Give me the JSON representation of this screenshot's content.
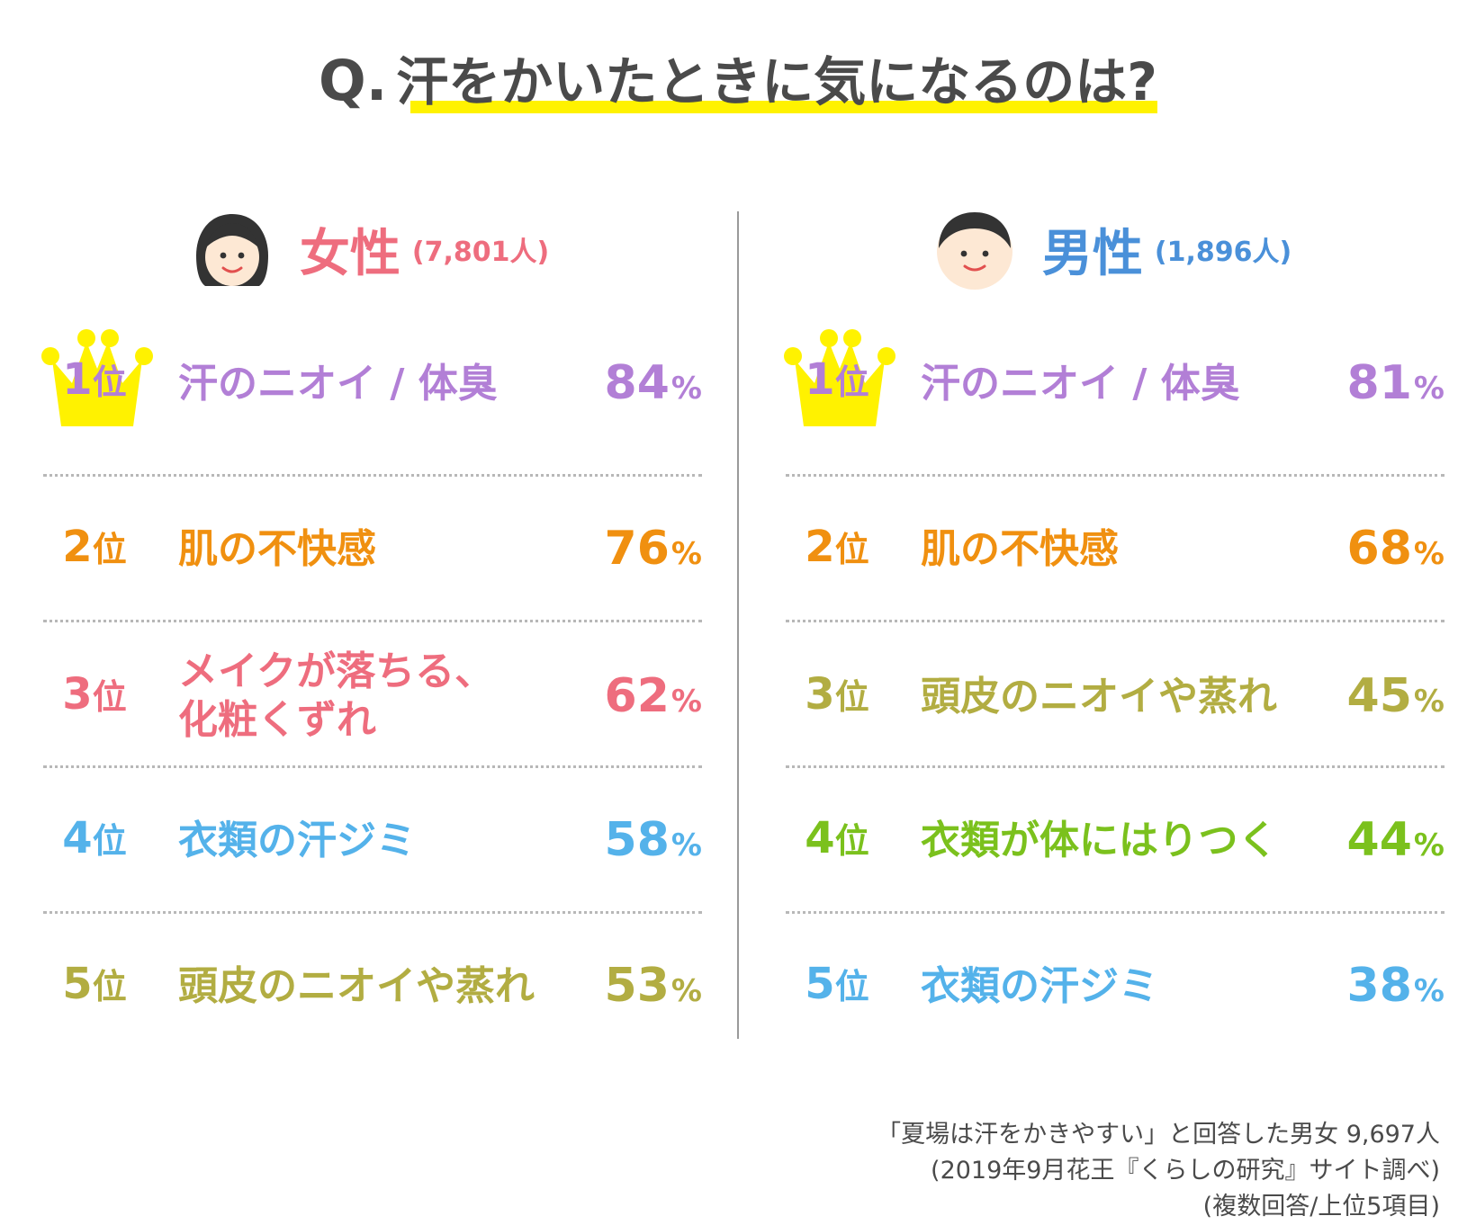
{
  "title": {
    "q": "Q.",
    "text": "汗をかいたときに気になるのは?"
  },
  "colors": {
    "female_header": "#ee6d7e",
    "male_header": "#4a90d9",
    "rank1": "#b27fd6",
    "rank2": "#f09010",
    "female_rank3": "#ee6d7e",
    "male_rank3": "#b2ad42",
    "female_rank4": "#54b2ea",
    "male_rank4": "#7bc11d",
    "female_rank5": "#b2ad42",
    "male_rank5": "#54b2ea",
    "crown": "#fff200",
    "title_underline": "#fff200"
  },
  "chart_data": [
    {
      "type": "table",
      "group": "女性",
      "count_label": "(7,801人)",
      "rank_unit": "位",
      "pct_unit": "%",
      "rows": [
        {
          "rank": "1",
          "item": "汗のニオイ / 体臭",
          "value": 84
        },
        {
          "rank": "2",
          "item": "肌の不快感",
          "value": 76
        },
        {
          "rank": "3",
          "item_line1": "メイクが落ちる、",
          "item_line2": "化粧くずれ",
          "value": 62
        },
        {
          "rank": "4",
          "item": "衣類の汗ジミ",
          "value": 58
        },
        {
          "rank": "5",
          "item": "頭皮のニオイや蒸れ",
          "value": 53
        }
      ]
    },
    {
      "type": "table",
      "group": "男性",
      "count_label": "(1,896人)",
      "rank_unit": "位",
      "pct_unit": "%",
      "rows": [
        {
          "rank": "1",
          "item": "汗のニオイ / 体臭",
          "value": 81
        },
        {
          "rank": "2",
          "item": "肌の不快感",
          "value": 68
        },
        {
          "rank": "3",
          "item": "頭皮のニオイや蒸れ",
          "value": 45
        },
        {
          "rank": "4",
          "item": "衣類が体にはりつく",
          "value": 44
        },
        {
          "rank": "5",
          "item": "衣類の汗ジミ",
          "value": 38
        }
      ]
    }
  ],
  "note": {
    "line1": "「夏場は汗をかきやすい」と回答した男女 9,697人",
    "line2": "(2019年9月花王『くらしの研究』サイト調べ)",
    "line3": "(複数回答/上位5項目)"
  }
}
